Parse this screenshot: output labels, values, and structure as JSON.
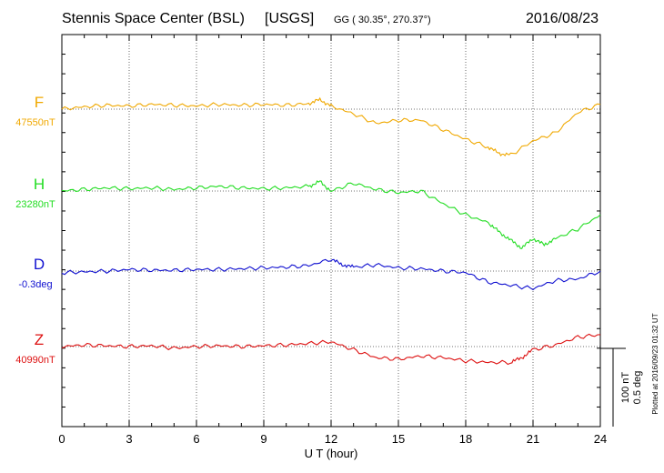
{
  "header": {
    "station": "Stennis Space Center (BSL)",
    "network": "[USGS]",
    "coords": "GG ( 30.35°, 270.37°)",
    "date": "2016/08/23"
  },
  "side_note": "Plotted at 2016/09/23 01:32 UT",
  "chart_data": {
    "type": "line",
    "xlabel": "U T (hour)",
    "xlim": [
      0,
      24
    ],
    "x_ticks": [
      0,
      3,
      6,
      9,
      12,
      15,
      18,
      21,
      24
    ],
    "x_tick_labels": [
      "0",
      "3",
      "6",
      "9",
      "12",
      "15",
      "18",
      "21",
      "24"
    ],
    "grid": true,
    "scale_bar": {
      "label1": "100 nT",
      "label2": "0.5 deg"
    },
    "series": [
      {
        "name": "F",
        "baseline": "47550nT",
        "color": "#f0a800",
        "x": [
          0,
          1,
          2,
          3,
          4,
          5,
          6,
          7,
          8,
          9,
          10,
          11,
          11.5,
          12,
          13,
          14,
          15,
          16,
          17,
          18,
          19,
          19.5,
          20,
          21,
          22,
          23,
          24
        ],
        "y": [
          0,
          3,
          5,
          4,
          6,
          5,
          4,
          6,
          5,
          6,
          5,
          7,
          12,
          4,
          -6,
          -18,
          -14,
          -14,
          -26,
          -38,
          -48,
          -56,
          -58,
          -40,
          -30,
          -4,
          6
        ]
      },
      {
        "name": "H",
        "baseline": "23280nT",
        "color": "#22dd22",
        "x": [
          0,
          1,
          2,
          3,
          4,
          5,
          6,
          7,
          8,
          9,
          10,
          11,
          11.5,
          12,
          13,
          14,
          15,
          16,
          17,
          18,
          19,
          19.5,
          20,
          20.5,
          21,
          21.5,
          22,
          23,
          24
        ],
        "y": [
          0,
          2,
          4,
          3,
          4,
          2,
          4,
          6,
          4,
          3,
          4,
          6,
          12,
          0,
          10,
          2,
          -2,
          0,
          -16,
          -30,
          -40,
          -52,
          -62,
          -72,
          -60,
          -68,
          -60,
          -48,
          -30
        ]
      },
      {
        "name": "D",
        "baseline": "-0.3deg",
        "color": "#1010d0",
        "x": [
          0,
          1,
          2,
          3,
          4,
          5,
          6,
          7,
          8,
          9,
          10,
          11,
          12,
          12.5,
          13,
          14,
          15,
          16,
          17,
          18,
          19,
          20,
          21,
          22,
          23,
          24
        ],
        "y": [
          -2,
          -1,
          0,
          2,
          1,
          1,
          2,
          2,
          3,
          4,
          5,
          7,
          15,
          8,
          5,
          8,
          4,
          3,
          0,
          -2,
          -14,
          -18,
          -22,
          -12,
          -10,
          0
        ]
      },
      {
        "name": "Z",
        "baseline": "40990nT",
        "color": "#dd1010",
        "x": [
          0,
          1,
          2,
          3,
          4,
          5,
          6,
          7,
          8,
          9,
          10,
          11,
          12,
          13,
          14,
          15,
          16,
          17,
          18,
          19,
          20,
          20.5,
          21,
          22,
          23,
          24
        ],
        "y": [
          0,
          2,
          1,
          0,
          1,
          -2,
          0,
          1,
          0,
          1,
          2,
          4,
          6,
          -4,
          -14,
          -16,
          -12,
          -14,
          -18,
          -20,
          -20,
          -14,
          -4,
          2,
          12,
          15
        ]
      }
    ]
  }
}
